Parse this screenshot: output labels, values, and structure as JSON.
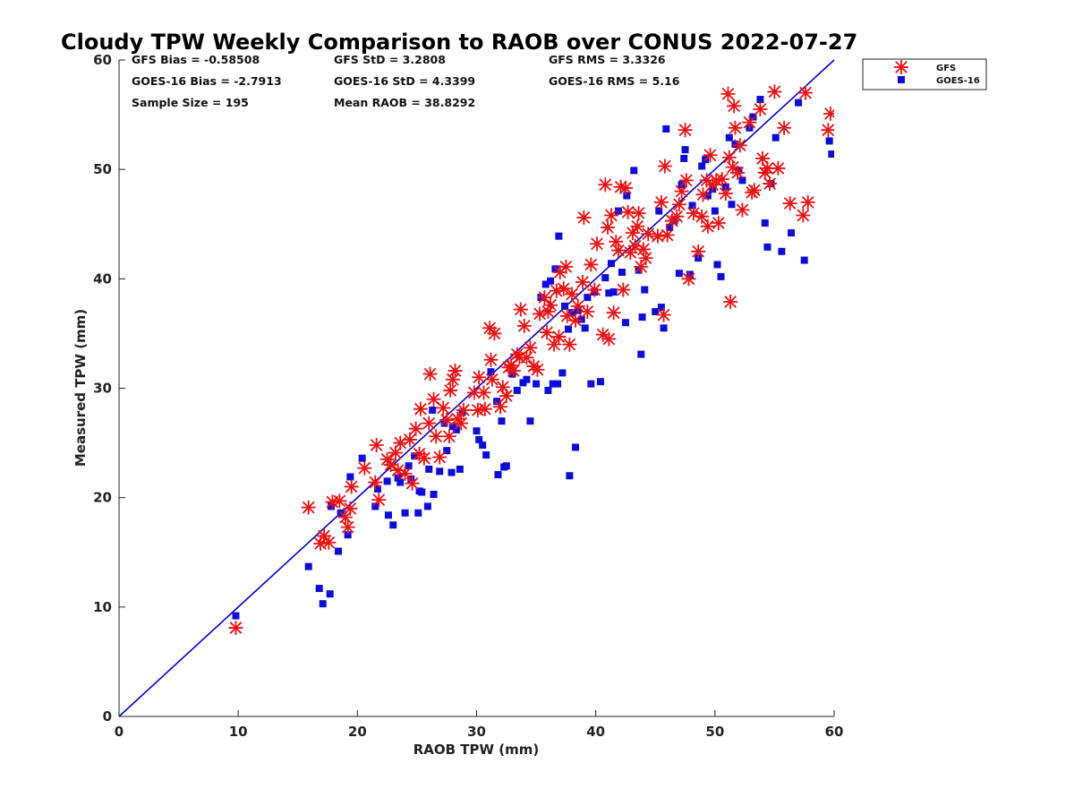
{
  "chart_data": {
    "type": "scatter",
    "title": "Cloudy TPW Weekly Comparison to RAOB over CONUS 2022-07-27",
    "xlabel": "RAOB TPW (mm)",
    "ylabel": "Measured TPW (mm)",
    "xlim": [
      0,
      60
    ],
    "ylim": [
      0,
      60
    ],
    "xticks": [
      0,
      10,
      20,
      30,
      40,
      50,
      60
    ],
    "yticks": [
      0,
      10,
      20,
      30,
      40,
      50,
      60
    ],
    "grid": false,
    "legend_position": "top-right, outside plot",
    "reference_line": {
      "name": "1:1 line",
      "x": [
        0,
        60
      ],
      "y": [
        0,
        60
      ],
      "color": "#0000cc"
    },
    "stats": [
      [
        "GFS Bias = -0.58508",
        "GFS StD = 3.2808",
        "GFS RMS = 3.3326"
      ],
      [
        "GOES-16 Bias = -2.7913",
        "GOES-16 StD = 4.3399",
        "GOES-16 RMS = 5.16"
      ],
      [
        "Sample Size = 195",
        "Mean RAOB = 38.8292",
        ""
      ]
    ],
    "series": [
      {
        "name": "GFS",
        "marker": "asterisk",
        "color": "#ee1111",
        "points": [
          [
            9.8,
            8.1
          ],
          [
            15.9,
            19.1
          ],
          [
            16.9,
            15.8
          ],
          [
            17.2,
            16.5
          ],
          [
            17.6,
            15.9
          ],
          [
            17.9,
            19.6
          ],
          [
            18.5,
            19.7
          ],
          [
            19.0,
            18.2
          ],
          [
            19.2,
            17.3
          ],
          [
            19.4,
            19.0
          ],
          [
            19.5,
            21.0
          ],
          [
            20.6,
            22.7
          ],
          [
            21.5,
            21.4
          ],
          [
            21.6,
            24.8
          ],
          [
            21.8,
            19.8
          ],
          [
            22.5,
            23.5
          ],
          [
            22.8,
            23.0
          ],
          [
            23.2,
            24.1
          ],
          [
            23.4,
            22.5
          ],
          [
            23.6,
            25.0
          ],
          [
            24.0,
            22.2
          ],
          [
            24.4,
            25.3
          ],
          [
            24.6,
            21.3
          ],
          [
            24.9,
            26.3
          ],
          [
            25.2,
            24.0
          ],
          [
            25.3,
            28.1
          ],
          [
            25.6,
            23.6
          ],
          [
            26.0,
            26.8
          ],
          [
            26.1,
            31.3
          ],
          [
            26.4,
            29.0
          ],
          [
            26.6,
            25.6
          ],
          [
            26.9,
            23.7
          ],
          [
            27.2,
            28.2
          ],
          [
            27.5,
            27.1
          ],
          [
            27.7,
            25.6
          ],
          [
            27.8,
            29.8
          ],
          [
            28.0,
            30.8
          ],
          [
            28.2,
            31.6
          ],
          [
            28.4,
            27.2
          ],
          [
            28.7,
            26.8
          ],
          [
            28.9,
            28.0
          ],
          [
            29.8,
            29.6
          ],
          [
            30.1,
            28.0
          ],
          [
            30.2,
            31.0
          ],
          [
            30.6,
            29.6
          ],
          [
            30.7,
            28.1
          ],
          [
            31.1,
            35.5
          ],
          [
            31.2,
            32.6
          ],
          [
            31.3,
            30.8
          ],
          [
            31.5,
            35.0
          ],
          [
            32.0,
            28.3
          ],
          [
            32.2,
            30.1
          ],
          [
            32.5,
            29.3
          ],
          [
            32.7,
            31.9
          ],
          [
            32.9,
            32.1
          ],
          [
            33.1,
            31.6
          ],
          [
            33.4,
            33.1
          ],
          [
            33.6,
            32.8
          ],
          [
            33.7,
            37.2
          ],
          [
            34.0,
            35.7
          ],
          [
            34.2,
            32.8
          ],
          [
            34.5,
            33.7
          ],
          [
            34.8,
            32.0
          ],
          [
            35.1,
            31.7
          ],
          [
            35.3,
            36.8
          ],
          [
            35.7,
            38.3
          ],
          [
            35.9,
            35.1
          ],
          [
            36.0,
            37.0
          ],
          [
            36.2,
            37.6
          ],
          [
            36.5,
            34.0
          ],
          [
            36.7,
            38.9
          ],
          [
            36.9,
            34.7
          ],
          [
            37.0,
            40.6
          ],
          [
            37.3,
            39.1
          ],
          [
            37.5,
            41.1
          ],
          [
            37.6,
            36.6
          ],
          [
            37.8,
            34.0
          ],
          [
            38.0,
            38.6
          ],
          [
            38.3,
            36.2
          ],
          [
            38.5,
            37.5
          ],
          [
            38.9,
            39.7
          ],
          [
            39.0,
            45.6
          ],
          [
            39.3,
            37.0
          ],
          [
            39.6,
            41.3
          ],
          [
            39.9,
            39.0
          ],
          [
            40.1,
            43.2
          ],
          [
            40.6,
            34.9
          ],
          [
            40.8,
            48.6
          ],
          [
            41.0,
            44.7
          ],
          [
            41.1,
            34.5
          ],
          [
            41.3,
            45.8
          ],
          [
            41.5,
            36.9
          ],
          [
            41.7,
            43.4
          ],
          [
            41.9,
            42.6
          ],
          [
            42.1,
            48.4
          ],
          [
            42.3,
            39.0
          ],
          [
            42.5,
            48.3
          ],
          [
            42.7,
            46.1
          ],
          [
            42.9,
            42.4
          ],
          [
            43.1,
            44.2
          ],
          [
            43.3,
            43.0
          ],
          [
            43.5,
            44.8
          ],
          [
            43.6,
            46.0
          ],
          [
            43.8,
            41.1
          ],
          [
            44.0,
            42.7
          ],
          [
            44.2,
            41.9
          ],
          [
            44.4,
            44.1
          ],
          [
            45.2,
            43.9
          ],
          [
            45.5,
            47.0
          ],
          [
            45.7,
            36.7
          ],
          [
            45.8,
            50.3
          ],
          [
            46.0,
            44.0
          ],
          [
            46.4,
            45.3
          ],
          [
            46.8,
            45.7
          ],
          [
            47.0,
            46.8
          ],
          [
            47.2,
            48.0
          ],
          [
            47.5,
            53.6
          ],
          [
            47.6,
            49.0
          ],
          [
            47.8,
            40.0
          ],
          [
            48.2,
            46.0
          ],
          [
            48.6,
            42.5
          ],
          [
            48.9,
            45.7
          ],
          [
            49.0,
            47.7
          ],
          [
            49.3,
            49.0
          ],
          [
            49.4,
            44.8
          ],
          [
            49.6,
            51.3
          ],
          [
            49.8,
            48.6
          ],
          [
            50.1,
            49.0
          ],
          [
            50.3,
            45.1
          ],
          [
            50.6,
            49.1
          ],
          [
            50.9,
            47.8
          ],
          [
            51.1,
            56.9
          ],
          [
            51.2,
            51.1
          ],
          [
            51.3,
            37.9
          ],
          [
            51.5,
            50.2
          ],
          [
            51.6,
            55.8
          ],
          [
            51.7,
            53.8
          ],
          [
            51.9,
            49.7
          ],
          [
            52.1,
            52.2
          ],
          [
            52.3,
            46.3
          ],
          [
            52.9,
            54.3
          ],
          [
            53.1,
            47.9
          ],
          [
            53.3,
            48.1
          ],
          [
            53.8,
            55.5
          ],
          [
            54.0,
            51.0
          ],
          [
            54.2,
            49.7
          ],
          [
            54.4,
            50.1
          ],
          [
            54.6,
            48.7
          ],
          [
            55.0,
            57.1
          ],
          [
            55.3,
            50.1
          ],
          [
            55.8,
            53.8
          ],
          [
            56.3,
            46.9
          ],
          [
            57.4,
            45.8
          ],
          [
            57.6,
            57.0
          ],
          [
            57.8,
            47.0
          ],
          [
            59.5,
            53.6
          ],
          [
            59.7,
            55.1
          ]
        ]
      },
      {
        "name": "GOES-16",
        "marker": "square",
        "color": "#0b0be0",
        "points": [
          [
            9.8,
            9.2
          ],
          [
            15.9,
            13.7
          ],
          [
            16.8,
            11.7
          ],
          [
            17.1,
            10.3
          ],
          [
            17.7,
            11.2
          ],
          [
            17.8,
            19.2
          ],
          [
            18.4,
            15.1
          ],
          [
            18.6,
            18.6
          ],
          [
            19.2,
            16.6
          ],
          [
            19.4,
            21.9
          ],
          [
            20.4,
            23.6
          ],
          [
            21.5,
            19.2
          ],
          [
            21.7,
            20.8
          ],
          [
            22.5,
            21.5
          ],
          [
            22.6,
            18.4
          ],
          [
            23.0,
            17.5
          ],
          [
            23.4,
            21.8
          ],
          [
            23.6,
            21.4
          ],
          [
            24.0,
            18.6
          ],
          [
            24.3,
            22.9
          ],
          [
            24.5,
            21.7
          ],
          [
            24.8,
            23.8
          ],
          [
            25.1,
            18.6
          ],
          [
            25.2,
            20.6
          ],
          [
            25.4,
            20.5
          ],
          [
            25.9,
            19.2
          ],
          [
            26.0,
            22.6
          ],
          [
            26.3,
            28.0
          ],
          [
            26.4,
            20.3
          ],
          [
            26.9,
            22.4
          ],
          [
            27.3,
            26.8
          ],
          [
            27.5,
            24.3
          ],
          [
            27.9,
            22.3
          ],
          [
            28.0,
            26.5
          ],
          [
            28.3,
            26.2
          ],
          [
            28.6,
            22.6
          ],
          [
            28.8,
            27.8
          ],
          [
            30.0,
            26.1
          ],
          [
            30.2,
            25.3
          ],
          [
            30.5,
            24.8
          ],
          [
            30.8,
            23.9
          ],
          [
            31.2,
            31.5
          ],
          [
            31.7,
            28.8
          ],
          [
            31.8,
            22.1
          ],
          [
            32.1,
            27.0
          ],
          [
            32.3,
            22.8
          ],
          [
            32.5,
            22.9
          ],
          [
            33.0,
            31.3
          ],
          [
            33.4,
            29.8
          ],
          [
            33.9,
            30.5
          ],
          [
            34.2,
            30.8
          ],
          [
            34.5,
            27.0
          ],
          [
            35.0,
            30.4
          ],
          [
            35.4,
            38.3
          ],
          [
            35.8,
            39.5
          ],
          [
            36.0,
            29.8
          ],
          [
            36.2,
            39.8
          ],
          [
            36.4,
            30.4
          ],
          [
            36.6,
            40.9
          ],
          [
            36.8,
            30.4
          ],
          [
            36.9,
            43.9
          ],
          [
            37.2,
            31.4
          ],
          [
            37.4,
            37.5
          ],
          [
            37.7,
            35.4
          ],
          [
            37.8,
            22.0
          ],
          [
            38.0,
            36.9
          ],
          [
            38.3,
            24.6
          ],
          [
            38.5,
            37.1
          ],
          [
            38.8,
            36.3
          ],
          [
            39.1,
            35.5
          ],
          [
            39.3,
            38.3
          ],
          [
            39.6,
            30.4
          ],
          [
            39.9,
            38.8
          ],
          [
            40.4,
            30.6
          ],
          [
            40.8,
            40.1
          ],
          [
            41.1,
            38.7
          ],
          [
            41.3,
            41.4
          ],
          [
            41.5,
            38.8
          ],
          [
            41.9,
            46.2
          ],
          [
            42.2,
            40.6
          ],
          [
            42.5,
            36.0
          ],
          [
            42.6,
            47.6
          ],
          [
            43.2,
            49.9
          ],
          [
            43.6,
            40.8
          ],
          [
            43.8,
            33.1
          ],
          [
            43.9,
            36.5
          ],
          [
            44.1,
            39.0
          ],
          [
            45.0,
            37.0
          ],
          [
            45.3,
            46.2
          ],
          [
            45.5,
            37.4
          ],
          [
            45.7,
            35.5
          ],
          [
            45.9,
            53.7
          ],
          [
            46.2,
            44.7
          ],
          [
            46.6,
            45.3
          ],
          [
            47.0,
            40.5
          ],
          [
            47.2,
            48.6
          ],
          [
            47.4,
            51.0
          ],
          [
            47.5,
            51.8
          ],
          [
            47.9,
            40.4
          ],
          [
            48.1,
            46.7
          ],
          [
            48.6,
            41.9
          ],
          [
            48.9,
            50.3
          ],
          [
            49.2,
            50.9
          ],
          [
            49.4,
            47.6
          ],
          [
            49.8,
            48.2
          ],
          [
            50.0,
            46.2
          ],
          [
            50.2,
            41.3
          ],
          [
            50.5,
            40.2
          ],
          [
            50.9,
            48.4
          ],
          [
            51.2,
            52.9
          ],
          [
            51.4,
            46.8
          ],
          [
            51.7,
            52.3
          ],
          [
            52.0,
            49.9
          ],
          [
            52.3,
            49.0
          ],
          [
            52.9,
            53.8
          ],
          [
            53.2,
            54.8
          ],
          [
            53.8,
            56.4
          ],
          [
            54.2,
            45.1
          ],
          [
            54.4,
            42.9
          ],
          [
            54.7,
            48.7
          ],
          [
            55.1,
            52.9
          ],
          [
            55.6,
            42.5
          ],
          [
            56.4,
            44.2
          ],
          [
            57.0,
            56.1
          ],
          [
            57.5,
            41.7
          ],
          [
            59.6,
            52.6
          ],
          [
            59.8,
            51.4
          ]
        ]
      }
    ]
  }
}
